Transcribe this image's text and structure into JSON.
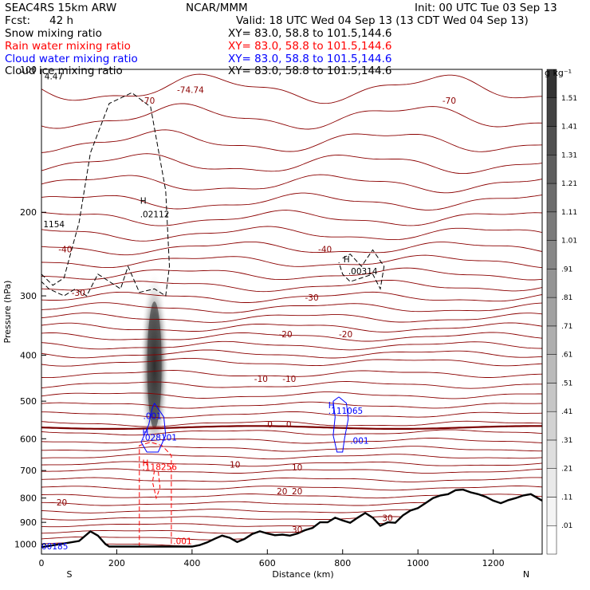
{
  "header": {
    "model": "SEAC4RS 15km ARW",
    "center": "NCAR/MMM",
    "init": "Init: 00 UTC Tue 03 Sep 13",
    "fcst_label": "Fcst:",
    "fcst_value": "42 h",
    "valid": "Valid: 18 UTC Wed 04 Sep 13 (13 CDT Wed 04 Sep 13)"
  },
  "fields": [
    {
      "name": "Snow mixing ratio",
      "xy": "XY=  83.0, 58.8 to 101.5,144.6",
      "color": "#000000"
    },
    {
      "name": "Rain water mixing ratio",
      "xy": "XY=  83.0, 58.8 to 101.5,144.6",
      "color": "#ff0000"
    },
    {
      "name": "Cloud water mixing ratio",
      "xy": "XY=  83.0, 58.8 to 101.5,144.6",
      "color": "#0000ff"
    },
    {
      "name": "Cloud ice mixing ratio",
      "xy": "XY=  83.0, 58.8 to 101.5,144.6",
      "color": "#000000"
    }
  ],
  "chart_data": {
    "type": "contour-cross-section",
    "xlabel": "Distance (km)",
    "ylabel": "Pressure (hPa)",
    "xlim": [
      0,
      1330
    ],
    "ylim": [
      1050,
      100
    ],
    "yscale": "log",
    "x_ticks": [
      0,
      200,
      400,
      600,
      800,
      1000,
      1200
    ],
    "y_ticks": [
      200,
      300,
      400,
      500,
      600,
      700,
      800,
      900,
      1000
    ],
    "y_tick_top": "100",
    "endpoints": {
      "left": "S",
      "right": "N"
    },
    "colorbar": {
      "unit": "g kg⁻¹",
      "ticks": [
        ".01",
        ".11",
        ".21",
        ".31",
        ".41",
        ".51",
        ".61",
        ".71",
        ".81",
        ".91",
        "1.01",
        "1.11",
        "1.21",
        "1.31",
        "1.41",
        "1.51"
      ],
      "colors": [
        "#ffffff",
        "#f4f4f4",
        "#e9e9e9",
        "#dedede",
        "#d2d2d2",
        "#c6c6c6",
        "#bababa",
        "#aeaeae",
        "#a1a1a1",
        "#949494",
        "#878787",
        "#7a7a7a",
        "#6c6c6c",
        "#5e5e5e",
        "#505050",
        "#424242",
        "#333333"
      ]
    },
    "temperature_contours": {
      "color": "#8b0000",
      "interval": 5,
      "freezing_level_hpa": 568,
      "labels": [
        {
          "text": "-70",
          "x": 265,
          "p": 118
        },
        {
          "text": "-74.74",
          "x": 360,
          "p": 112
        },
        {
          "text": "-70",
          "x": 1065,
          "p": 118
        },
        {
          "text": "-40",
          "x": 45,
          "p": 243
        },
        {
          "text": "-40",
          "x": 735,
          "p": 243
        },
        {
          "text": "-30",
          "x": 80,
          "p": 300
        },
        {
          "text": "-30",
          "x": 700,
          "p": 307
        },
        {
          "text": "-20",
          "x": 630,
          "p": 367
        },
        {
          "text": "-20",
          "x": 790,
          "p": 367
        },
        {
          "text": "-10",
          "x": 565,
          "p": 455
        },
        {
          "text": "-10",
          "x": 640,
          "p": 455
        },
        {
          "text": "0",
          "x": 600,
          "p": 568
        },
        {
          "text": "0",
          "x": 650,
          "p": 568
        },
        {
          "text": "10",
          "x": 500,
          "p": 690
        },
        {
          "text": "10",
          "x": 665,
          "p": 700
        },
        {
          "text": "20",
          "x": 625,
          "p": 785
        },
        {
          "text": "20",
          "x": 665,
          "p": 785
        },
        {
          "text": "20",
          "x": 40,
          "p": 830
        },
        {
          "text": "30",
          "x": 905,
          "p": 895
        },
        {
          "text": "30",
          "x": 665,
          "p": 945
        }
      ]
    },
    "terrain_profile": {
      "x": [
        0,
        50,
        100,
        130,
        150,
        170,
        180,
        190,
        200,
        250,
        300,
        350,
        400,
        420,
        440,
        460,
        480,
        500,
        520,
        540,
        560,
        580,
        600,
        620,
        640,
        660,
        680,
        700,
        720,
        740,
        760,
        780,
        800,
        820,
        840,
        860,
        880,
        900,
        920,
        940,
        960,
        980,
        1000,
        1020,
        1040,
        1060,
        1080,
        1100,
        1120,
        1140,
        1160,
        1180,
        1200,
        1220,
        1240,
        1260,
        1280,
        1300,
        1330
      ],
      "p": [
        1015,
        1000,
        985,
        940,
        960,
        1000,
        1012,
        1012,
        1012,
        1012,
        1012,
        1012,
        1012,
        1005,
        992,
        975,
        960,
        970,
        990,
        975,
        952,
        940,
        950,
        958,
        955,
        960,
        950,
        935,
        925,
        900,
        900,
        880,
        892,
        902,
        880,
        860,
        880,
        915,
        900,
        902,
        870,
        850,
        840,
        820,
        800,
        790,
        785,
        770,
        768,
        778,
        785,
        795,
        810,
        820,
        808,
        800,
        790,
        785,
        810
      ]
    },
    "snow_contour": {
      "color": "#000000",
      "style": "dashed",
      "value_labels": [
        {
          "text": "4.47",
          "x": 8,
          "p": 105
        },
        {
          "text": "1154",
          "x": 5,
          "p": 215
        },
        {
          "text": ".00314",
          "x": 815,
          "p": 270
        }
      ],
      "max_labels": [
        {
          "text": "H",
          "x": 262,
          "p": 192
        },
        {
          "text": ".02112",
          "x": 262,
          "p": 205
        },
        {
          "text": "H",
          "x": 802,
          "p": 255
        }
      ]
    },
    "rain_contour": {
      "color": "#ff0000",
      "style": "dashed",
      "value_labels": [
        {
          "text": ".001",
          "x": 350,
          "p": 1000
        }
      ],
      "max_labels": [
        {
          "text": "H",
          "x": 268,
          "p": 685
        },
        {
          "text": ".118256",
          "x": 268,
          "p": 698
        }
      ]
    },
    "cloud_water_contour": {
      "color": "#0000ff",
      "style": "solid",
      "value_labels": [
        {
          "text": ".001",
          "x": 270,
          "p": 545
        },
        {
          "text": ".001",
          "x": 820,
          "p": 615
        },
        {
          "text": "00185",
          "x": 0,
          "p": 1025
        }
      ],
      "max_labels": [
        {
          "text": "H",
          "x": 268,
          "p": 590
        },
        {
          "text": ".028101",
          "x": 268,
          "p": 605
        },
        {
          "text": "H",
          "x": 762,
          "p": 517
        },
        {
          "text": ".111065",
          "x": 762,
          "p": 532
        }
      ]
    }
  }
}
